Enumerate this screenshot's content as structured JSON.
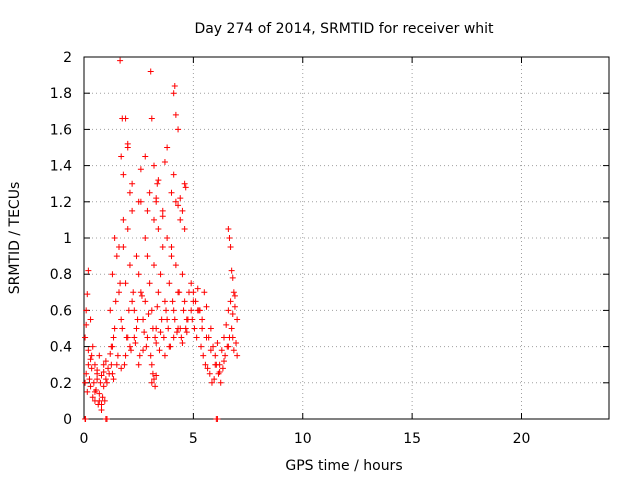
{
  "chart_data": {
    "type": "scatter",
    "title": "Day 274 of 2014, SRMTID for receiver whit",
    "xlabel": "GPS time / hours",
    "ylabel": "SRMTID / TECUs",
    "xlim": [
      0,
      24
    ],
    "ylim": [
      0,
      2
    ],
    "xticks": [
      0,
      5,
      10,
      15,
      20
    ],
    "yticks": [
      0,
      0.2,
      0.4,
      0.6,
      0.8,
      1,
      1.2,
      1.4,
      1.6,
      1.8,
      2
    ],
    "ytick_labels": [
      "0",
      "0.2",
      "0.4",
      "0.6",
      "0.8",
      "1",
      "1.2",
      "1.4",
      "1.6",
      "1.8",
      "2"
    ],
    "grid": true,
    "marker": "plus",
    "marker_color": "#ff0000",
    "series": [
      {
        "name": "SRMTID",
        "x": [
          0.05,
          0.1,
          0.15,
          0.2,
          0.25,
          0.3,
          0.35,
          0.4,
          0.45,
          0.5,
          0.55,
          0.6,
          0.65,
          0.7,
          0.75,
          0.8,
          0.85,
          0.9,
          0.95,
          1.0,
          0.05,
          0.1,
          0.2,
          0.3,
          0.4,
          0.5,
          0.6,
          0.7,
          0.8,
          0.9,
          1.0,
          1.1,
          1.2,
          1.3,
          0.1,
          0.15,
          0.2,
          0.3,
          0.35,
          0.5,
          0.6,
          0.7,
          0.8,
          0.9,
          1.05,
          1.15,
          1.25,
          1.35,
          1.2,
          1.3,
          1.4,
          1.5,
          1.6,
          1.7,
          1.8,
          1.9,
          2.0,
          2.1,
          2.2,
          2.3,
          2.4,
          2.5,
          2.6,
          2.7,
          2.8,
          2.9,
          3.0,
          3.1,
          3.2,
          3.3,
          3.4,
          3.5,
          3.6,
          3.7,
          3.8,
          3.9,
          4.0,
          4.1,
          4.2,
          4.3,
          4.4,
          4.5,
          4.6,
          4.7,
          4.8,
          4.9,
          1.25,
          1.35,
          1.45,
          1.55,
          1.65,
          1.75,
          1.85,
          1.95,
          2.05,
          2.15,
          2.25,
          2.35,
          2.45,
          2.55,
          2.65,
          2.75,
          2.85,
          2.95,
          3.05,
          3.15,
          3.25,
          3.35,
          3.45,
          3.55,
          3.65,
          3.75,
          3.85,
          3.95,
          4.05,
          4.15,
          4.25,
          4.35,
          4.45,
          4.55,
          4.65,
          4.75,
          1.3,
          1.5,
          1.7,
          1.9,
          2.1,
          2.3,
          2.5,
          2.7,
          2.9,
          3.1,
          3.3,
          3.5,
          3.7,
          3.9,
          4.1,
          4.3,
          4.5,
          4.7,
          1.4,
          1.6,
          1.8,
          2.0,
          2.2,
          2.4,
          2.6,
          2.8,
          3.0,
          3.2,
          3.4,
          3.6,
          3.8,
          4.0,
          4.2,
          4.4,
          4.6,
          1.65,
          1.75,
          1.9,
          2.0,
          3.05,
          3.1,
          3.3,
          3.35,
          4.1,
          4.15,
          4.2,
          4.3,
          4.6,
          4.65,
          1.7,
          1.8,
          2.0,
          2.1,
          2.2,
          2.5,
          2.6,
          2.8,
          2.9,
          3.2,
          3.3,
          3.4,
          3.6,
          3.7,
          3.8,
          4.0,
          4.1,
          4.3,
          4.4,
          4.5,
          3.1,
          3.15,
          3.2,
          3.25,
          3.3,
          4.9,
          5.0,
          5.1,
          5.2,
          5.3,
          5.4,
          5.5,
          5.6,
          5.7,
          5.8,
          5.9,
          6.0,
          6.1,
          6.2,
          6.3,
          6.4,
          6.5,
          6.6,
          6.7,
          6.8,
          6.9,
          7.0,
          4.95,
          5.05,
          5.15,
          5.25,
          5.35,
          5.45,
          5.55,
          5.65,
          5.75,
          5.85,
          5.95,
          6.05,
          6.15,
          6.25,
          6.35,
          6.45,
          6.55,
          6.65,
          6.75,
          6.85,
          6.95,
          5.0,
          5.2,
          5.4,
          5.6,
          5.8,
          6.0,
          6.2,
          6.4,
          6.6,
          6.8,
          7.0,
          6.6,
          6.65,
          6.7,
          6.75,
          6.8,
          6.85,
          6.9,
          0.05,
          0.07,
          1.0,
          1.05,
          6.05,
          6.1
        ],
        "y": [
          0.2,
          0.25,
          0.15,
          0.3,
          0.22,
          0.18,
          0.28,
          0.12,
          0.2,
          0.1,
          0.16,
          0.25,
          0.08,
          0.14,
          0.2,
          0.05,
          0.12,
          0.18,
          0.1,
          0.22,
          0.45,
          0.52,
          0.38,
          0.33,
          0.4,
          0.3,
          0.27,
          0.35,
          0.24,
          0.3,
          0.32,
          0.28,
          0.36,
          0.4,
          0.6,
          0.69,
          0.82,
          0.55,
          0.35,
          0.15,
          0.22,
          0.1,
          0.08,
          0.26,
          0.2,
          0.25,
          0.3,
          0.22,
          0.6,
          0.8,
          0.5,
          0.9,
          0.7,
          0.55,
          0.95,
          0.75,
          0.45,
          0.85,
          0.65,
          0.6,
          0.5,
          0.8,
          0.7,
          0.55,
          0.65,
          0.9,
          0.75,
          0.6,
          0.85,
          0.5,
          0.7,
          0.8,
          0.95,
          0.65,
          0.55,
          0.75,
          0.9,
          0.6,
          0.85,
          0.7,
          0.5,
          0.8,
          0.65,
          0.55,
          0.7,
          0.6,
          0.4,
          0.45,
          0.65,
          0.35,
          0.75,
          0.5,
          0.3,
          0.45,
          0.6,
          0.38,
          0.7,
          0.42,
          0.55,
          0.35,
          0.68,
          0.48,
          0.4,
          0.58,
          0.35,
          0.5,
          0.45,
          0.62,
          0.38,
          0.55,
          0.45,
          0.6,
          0.5,
          0.4,
          0.65,
          0.55,
          0.48,
          0.7,
          0.45,
          0.6,
          0.5,
          0.55,
          0.25,
          0.3,
          0.28,
          0.35,
          0.4,
          0.45,
          0.3,
          0.38,
          0.45,
          0.3,
          0.42,
          0.48,
          0.35,
          0.4,
          0.45,
          0.5,
          0.42,
          0.48,
          1.0,
          0.95,
          1.1,
          1.05,
          1.15,
          0.9,
          1.2,
          1.0,
          1.25,
          1.1,
          1.05,
          1.15,
          1.0,
          0.95,
          1.2,
          1.1,
          1.05,
          1.98,
          1.66,
          1.66,
          1.52,
          1.92,
          1.66,
          1.2,
          1.3,
          1.8,
          1.84,
          1.68,
          1.6,
          1.3,
          1.28,
          1.45,
          1.35,
          1.5,
          1.25,
          1.3,
          1.2,
          1.38,
          1.45,
          1.15,
          1.4,
          1.22,
          1.32,
          1.12,
          1.42,
          1.5,
          1.25,
          1.35,
          1.18,
          1.22,
          1.15,
          0.2,
          0.25,
          0.22,
          0.18,
          0.24,
          0.75,
          0.7,
          0.65,
          0.72,
          0.6,
          0.55,
          0.7,
          0.62,
          0.45,
          0.5,
          0.4,
          0.35,
          0.42,
          0.3,
          0.38,
          0.45,
          0.52,
          0.6,
          0.65,
          0.58,
          0.62,
          0.55,
          0.55,
          0.5,
          0.45,
          0.6,
          0.4,
          0.35,
          0.3,
          0.28,
          0.25,
          0.2,
          0.22,
          0.3,
          0.25,
          0.2,
          0.28,
          0.35,
          0.4,
          0.45,
          0.5,
          0.38,
          0.42,
          0.65,
          0.6,
          0.5,
          0.45,
          0.38,
          0.3,
          0.26,
          0.32,
          0.4,
          0.45,
          0.35,
          1.05,
          1.0,
          0.95,
          0.82,
          0.78,
          0.7,
          0.68,
          0.0,
          0.0,
          0.0,
          0.0,
          0.0,
          0.0
        ]
      }
    ]
  }
}
